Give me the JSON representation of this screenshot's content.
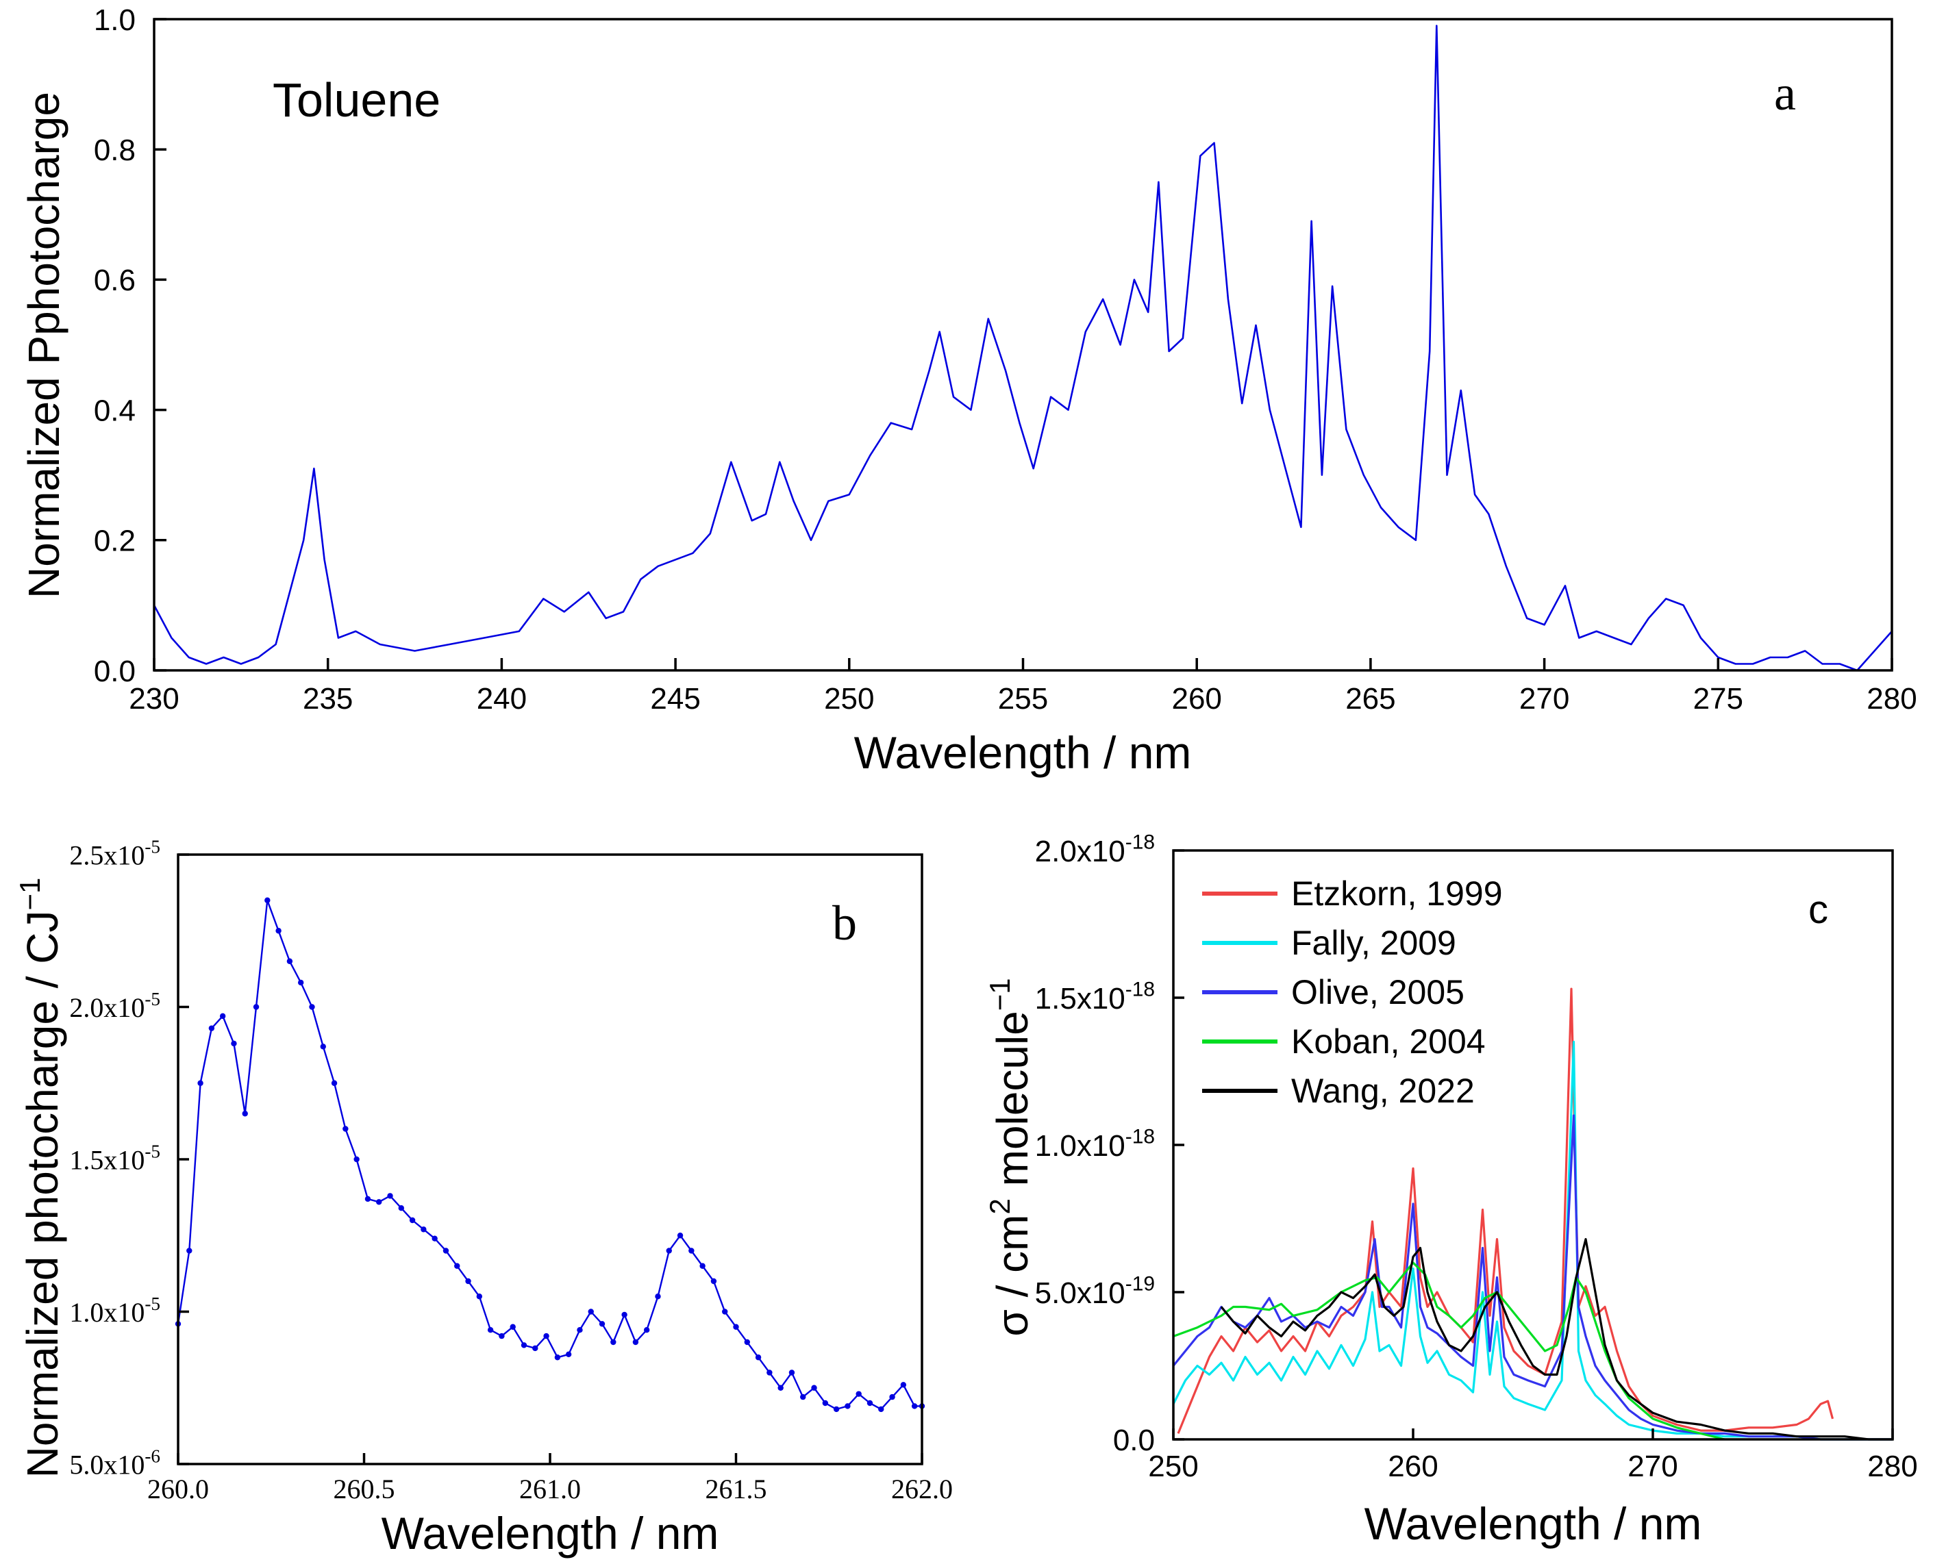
{
  "chart_data": [
    {
      "id": "a",
      "type": "line",
      "panel_label": "a",
      "annotation": "Toluene",
      "xlabel": "Wavelength / nm",
      "ylabel": "Normalized Pphotocharge",
      "xlim": [
        230,
        280
      ],
      "ylim": [
        0,
        1.0
      ],
      "x_ticks": [
        230,
        235,
        240,
        245,
        250,
        255,
        260,
        265,
        270,
        275,
        280
      ],
      "x_tick_labels": [
        "230",
        "235",
        "240",
        "245",
        "250",
        "255",
        "260",
        "265",
        "270",
        "275",
        "280"
      ],
      "y_ticks": [
        0,
        0.2,
        0.4,
        0.6,
        0.8,
        1.0
      ],
      "y_tick_labels": [
        "0.0",
        "0.2",
        "0.4",
        "0.6",
        "0.8",
        "1.0"
      ],
      "series": [
        {
          "name": "Toluene",
          "color": "#0000e0",
          "x": [
            230,
            230.5,
            231,
            231.5,
            232,
            232.5,
            233,
            233.5,
            234,
            234.3,
            234.6,
            234.9,
            235.3,
            235.8,
            236.5,
            237.5,
            238.5,
            239.5,
            240.5,
            241.2,
            241.8,
            242.5,
            243,
            243.5,
            244,
            244.5,
            245,
            245.5,
            246,
            246.6,
            247.2,
            247.6,
            248,
            248.4,
            248.9,
            249.4,
            250,
            250.6,
            251.2,
            251.8,
            252.3,
            252.6,
            253,
            253.5,
            254,
            254.5,
            254.9,
            255.3,
            255.8,
            256.3,
            256.8,
            257.3,
            257.8,
            258.2,
            258.6,
            258.9,
            259.2,
            259.6,
            260.1,
            260.5,
            260.9,
            261.3,
            261.7,
            262.1,
            262.6,
            263,
            263.3,
            263.6,
            263.9,
            264.3,
            264.8,
            265.3,
            265.8,
            266.3,
            266.7,
            266.9,
            267.2,
            267.6,
            268,
            268.4,
            268.9,
            269.5,
            270,
            270.6,
            271,
            271.5,
            272,
            272.5,
            273,
            273.5,
            274,
            274.5,
            275,
            275.5,
            276,
            276.5,
            277,
            277.5,
            278,
            278.5,
            279,
            279.5,
            280
          ],
          "y": [
            0.1,
            0.05,
            0.02,
            0.01,
            0.02,
            0.01,
            0.02,
            0.04,
            0.14,
            0.2,
            0.31,
            0.17,
            0.05,
            0.06,
            0.04,
            0.03,
            0.04,
            0.05,
            0.06,
            0.11,
            0.09,
            0.12,
            0.08,
            0.09,
            0.14,
            0.16,
            0.17,
            0.18,
            0.21,
            0.32,
            0.23,
            0.24,
            0.32,
            0.26,
            0.2,
            0.26,
            0.27,
            0.33,
            0.38,
            0.37,
            0.46,
            0.52,
            0.42,
            0.4,
            0.54,
            0.46,
            0.38,
            0.31,
            0.42,
            0.4,
            0.52,
            0.57,
            0.5,
            0.6,
            0.55,
            0.75,
            0.49,
            0.51,
            0.79,
            0.81,
            0.57,
            0.41,
            0.53,
            0.4,
            0.3,
            0.22,
            0.69,
            0.3,
            0.59,
            0.37,
            0.3,
            0.25,
            0.22,
            0.2,
            0.49,
            0.99,
            0.3,
            0.43,
            0.27,
            0.24,
            0.16,
            0.08,
            0.07,
            0.13,
            0.05,
            0.06,
            0.05,
            0.04,
            0.08,
            0.11,
            0.1,
            0.05,
            0.02,
            0.01,
            0.01,
            0.02,
            0.02,
            0.03,
            0.01,
            0.01,
            0.0,
            0.03,
            0.06
          ]
        }
      ]
    },
    {
      "id": "b",
      "type": "line",
      "panel_label": "b",
      "xlabel": "Wavelength / nm",
      "ylabel": "Normalized photocharge / CJ",
      "ylabel_superscript": "−1",
      "xlim": [
        260.0,
        262.0
      ],
      "ylim": [
        5e-06,
        2.5e-05
      ],
      "x_ticks": [
        260.0,
        260.5,
        261.0,
        261.5,
        262.0
      ],
      "x_tick_labels": [
        "260.0",
        "260.5",
        "261.0",
        "261.5",
        "262.0"
      ],
      "y_ticks": [
        5e-06,
        1e-05,
        1.5e-05,
        2e-05,
        2.5e-05
      ],
      "y_tick_mantissas": [
        "5.0x10",
        "1.0x10",
        "1.5x10",
        "2.0x10",
        "2.5x10"
      ],
      "y_tick_exponents": [
        "-6",
        "-5",
        "-5",
        "-5",
        "-5"
      ],
      "series": [
        {
          "name": "photocharge",
          "color": "#0000e0",
          "markers": true,
          "x": [
            260.0,
            260.03,
            260.06,
            260.09,
            260.12,
            260.15,
            260.18,
            260.21,
            260.24,
            260.27,
            260.3,
            260.33,
            260.36,
            260.39,
            260.42,
            260.45,
            260.48,
            260.51,
            260.54,
            260.57,
            260.6,
            260.63,
            260.66,
            260.69,
            260.72,
            260.75,
            260.78,
            260.81,
            260.84,
            260.87,
            260.9,
            260.93,
            260.96,
            260.99,
            261.02,
            261.05,
            261.08,
            261.11,
            261.14,
            261.17,
            261.2,
            261.23,
            261.26,
            261.29,
            261.32,
            261.35,
            261.38,
            261.41,
            261.44,
            261.47,
            261.5,
            261.53,
            261.56,
            261.59,
            261.62,
            261.65,
            261.68,
            261.71,
            261.74,
            261.77,
            261.8,
            261.83,
            261.86,
            261.89,
            261.92,
            261.95,
            261.98,
            262.0
          ],
          "y": [
            9.6e-06,
            1.2e-05,
            1.75e-05,
            1.93e-05,
            1.97e-05,
            1.88e-05,
            1.65e-05,
            2e-05,
            2.35e-05,
            2.25e-05,
            2.15e-05,
            2.08e-05,
            2e-05,
            1.87e-05,
            1.75e-05,
            1.6e-05,
            1.5e-05,
            1.37e-05,
            1.36e-05,
            1.38e-05,
            1.34e-05,
            1.3e-05,
            1.27e-05,
            1.24e-05,
            1.2e-05,
            1.15e-05,
            1.1e-05,
            1.05e-05,
            9.4e-06,
            9.2e-06,
            9.5e-06,
            8.9e-06,
            8.8e-06,
            9.2e-06,
            8.5e-06,
            8.6e-06,
            9.4e-06,
            1e-05,
            9.6e-06,
            9e-06,
            9.9e-06,
            9e-06,
            9.4e-06,
            1.05e-05,
            1.2e-05,
            1.25e-05,
            1.2e-05,
            1.15e-05,
            1.1e-05,
            1e-05,
            9.5e-06,
            9e-06,
            8.5e-06,
            8e-06,
            7.5e-06,
            8e-06,
            7.2e-06,
            7.5e-06,
            7e-06,
            6.8e-06,
            6.9e-06,
            7.3e-06,
            7e-06,
            6.8e-06,
            7.2e-06,
            7.6e-06,
            6.9e-06,
            6.9e-06
          ]
        }
      ]
    },
    {
      "id": "c",
      "type": "line",
      "panel_label": "c",
      "xlabel": "Wavelength / nm",
      "ylabel_parts": [
        "σ / cm",
        "2",
        " molecule",
        "−1"
      ],
      "xlim": [
        250,
        280
      ],
      "ylim": [
        0,
        2e-18
      ],
      "x_ticks": [
        250,
        260,
        270,
        280
      ],
      "x_tick_labels": [
        "250",
        "260",
        "270",
        "280"
      ],
      "y_ticks": [
        0,
        5e-19,
        1e-18,
        1.5e-18,
        2e-18
      ],
      "y_tick_mantissas": [
        "0.0",
        "5.0x10",
        "1.0x10",
        "1.5x10",
        "2.0x10"
      ],
      "y_tick_exponents": [
        "",
        "-19",
        "-18",
        "-18",
        "-18"
      ],
      "legend_position": "top-left",
      "series": [
        {
          "name": "Etzkorn, 1999",
          "color": "#ee4444",
          "x": [
            250.2,
            250.6,
            251,
            251.5,
            252,
            252.5,
            253,
            253.5,
            254,
            254.5,
            255,
            255.5,
            256,
            256.5,
            257,
            257.5,
            258,
            258.3,
            258.6,
            259,
            259.5,
            260,
            260.3,
            260.6,
            261,
            261.5,
            262,
            262.5,
            262.9,
            263.2,
            263.5,
            263.8,
            264.2,
            264.8,
            265.5,
            266.2,
            266.6,
            266.9,
            267.2,
            267.6,
            268,
            268.5,
            269,
            269.5,
            270,
            271,
            272,
            273,
            274,
            275,
            276,
            276.5,
            277,
            277.3,
            277.5
          ],
          "y": [
            2e-20,
            1e-19,
            1.8e-19,
            2.8e-19,
            3.5e-19,
            3e-19,
            3.8e-19,
            3.3e-19,
            3.7e-19,
            3e-19,
            3.5e-19,
            3e-19,
            4e-19,
            3.5e-19,
            4.2e-19,
            4.5e-19,
            5e-19,
            7.4e-19,
            4.5e-19,
            5e-19,
            4.5e-19,
            9.2e-19,
            5.5e-19,
            4.5e-19,
            5e-19,
            4.2e-19,
            3.8e-19,
            3.3e-19,
            7.8e-19,
            4.2e-19,
            6.8e-19,
            3.8e-19,
            3e-19,
            2.5e-19,
            2.2e-19,
            4e-19,
            1.53e-18,
            4.5e-19,
            5.2e-19,
            4.2e-19,
            4.5e-19,
            3e-19,
            1.8e-19,
            1.2e-19,
            8e-20,
            5e-20,
            3e-20,
            3e-20,
            4e-20,
            4e-20,
            5e-20,
            7e-20,
            1.2e-19,
            1.3e-19,
            7e-20
          ]
        },
        {
          "name": "Fally, 2009",
          "color": "#00e5ee",
          "x": [
            250,
            250.5,
            251,
            251.5,
            252,
            252.5,
            253,
            253.5,
            254,
            254.5,
            255,
            255.5,
            256,
            256.5,
            257,
            257.5,
            258,
            258.3,
            258.6,
            259,
            259.5,
            260,
            260.3,
            260.6,
            261,
            261.5,
            262,
            262.5,
            262.9,
            263.2,
            263.5,
            263.8,
            264.2,
            264.8,
            265.5,
            266.2,
            266.7,
            266.9,
            267.2,
            267.6,
            268,
            268.5,
            269,
            270,
            271,
            272,
            273,
            274,
            275,
            276,
            277,
            278,
            280
          ],
          "y": [
            1.2e-19,
            2e-19,
            2.5e-19,
            2.2e-19,
            2.6e-19,
            2e-19,
            2.8e-19,
            2.2e-19,
            2.6e-19,
            2e-19,
            2.8e-19,
            2.2e-19,
            3e-19,
            2.4e-19,
            3.2e-19,
            2.5e-19,
            3.4e-19,
            5e-19,
            3e-19,
            3.2e-19,
            2.5e-19,
            5.8e-19,
            3.5e-19,
            2.6e-19,
            3e-19,
            2.2e-19,
            2e-19,
            1.6e-19,
            5e-19,
            2.2e-19,
            4e-19,
            1.8e-19,
            1.4e-19,
            1.2e-19,
            1e-19,
            2e-19,
            1.35e-18,
            3e-19,
            2e-19,
            1.5e-19,
            1.2e-19,
            8e-20,
            5e-20,
            3e-20,
            2e-20,
            2e-20,
            1e-20,
            1e-20,
            1e-20,
            1e-20,
            0.0,
            0.0,
            0.0
          ]
        },
        {
          "name": "Olive, 2005",
          "color": "#3333ee",
          "x": [
            250,
            250.5,
            251,
            251.5,
            252,
            252.5,
            253,
            253.5,
            254,
            254.5,
            255,
            255.5,
            256,
            256.5,
            257,
            257.5,
            258,
            258.4,
            258.7,
            259,
            259.5,
            260,
            260.3,
            260.6,
            261,
            261.5,
            262,
            262.5,
            262.9,
            263.2,
            263.5,
            263.8,
            264.2,
            264.8,
            265.5,
            266.2,
            266.7,
            266.9,
            267.2,
            267.6,
            268,
            268.5,
            269,
            269.5,
            270,
            271,
            272,
            273,
            274,
            275,
            276,
            277,
            278,
            279,
            280
          ],
          "y": [
            2.5e-19,
            3e-19,
            3.5e-19,
            3.8e-19,
            4.5e-19,
            4e-19,
            3.8e-19,
            4.2e-19,
            4.8e-19,
            4e-19,
            4.2e-19,
            3.8e-19,
            4e-19,
            3.8e-19,
            4.5e-19,
            4.2e-19,
            5e-19,
            6.8e-19,
            4.5e-19,
            4.5e-19,
            3.8e-19,
            8e-19,
            4.5e-19,
            3.8e-19,
            3.6e-19,
            3.2e-19,
            2.8e-19,
            2.5e-19,
            6.5e-19,
            3e-19,
            5.5e-19,
            2.8e-19,
            2.2e-19,
            2e-19,
            1.8e-19,
            3e-19,
            1.1e-18,
            4.5e-19,
            3.5e-19,
            2.5e-19,
            2e-19,
            1.5e-19,
            1e-19,
            7e-20,
            5e-20,
            3e-20,
            2e-20,
            2e-20,
            1e-20,
            1e-20,
            1e-20,
            0.0,
            0.0,
            0.0,
            0.0
          ]
        },
        {
          "name": "Koban, 2004",
          "color": "#00dd22",
          "x": [
            250,
            251,
            252,
            252.5,
            253,
            254,
            254.5,
            255,
            256,
            257,
            258,
            258.5,
            259,
            259.5,
            260,
            260.5,
            261,
            261.5,
            262,
            262.5,
            263,
            263.5,
            264,
            264.5,
            265,
            265.5,
            266,
            266.5,
            266.8,
            267.2,
            267.6,
            268,
            268.5,
            269,
            270,
            271,
            272,
            273
          ],
          "y": [
            3.5e-19,
            3.8e-19,
            4.2e-19,
            4.5e-19,
            4.5e-19,
            4.4e-19,
            4.6e-19,
            4.2e-19,
            4.4e-19,
            5e-19,
            5.4e-19,
            5.5e-19,
            5e-19,
            5.5e-19,
            6e-19,
            5.6e-19,
            4.5e-19,
            4.2e-19,
            3.8e-19,
            4.2e-19,
            4.8e-19,
            5e-19,
            4.5e-19,
            4e-19,
            3.5e-19,
            3e-19,
            3.2e-19,
            4.5e-19,
            5.5e-19,
            5e-19,
            4e-19,
            3e-19,
            2e-19,
            1.4e-19,
            7e-20,
            4e-20,
            2e-20,
            0.0
          ]
        },
        {
          "name": "Wang, 2022",
          "color": "#000000",
          "x": [
            252,
            252.5,
            253,
            253.5,
            254,
            254.5,
            255,
            255.5,
            256,
            256.5,
            257,
            257.5,
            258,
            258.4,
            258.8,
            259.2,
            259.6,
            260,
            260.3,
            260.6,
            261,
            261.5,
            262,
            262.5,
            263,
            263.5,
            264,
            264.5,
            265,
            265.5,
            266,
            266.4,
            266.8,
            267.2,
            267.6,
            268,
            268.5,
            269,
            269.5,
            270,
            271,
            272,
            273,
            274,
            275,
            276,
            277,
            278,
            279,
            280
          ],
          "y": [
            4.5e-19,
            4e-19,
            3.6e-19,
            4.2e-19,
            3.8e-19,
            3.5e-19,
            4e-19,
            3.7e-19,
            4.2e-19,
            4.5e-19,
            5e-19,
            4.8e-19,
            5.2e-19,
            5.6e-19,
            4.5e-19,
            4.2e-19,
            4.5e-19,
            6.2e-19,
            6.5e-19,
            5e-19,
            4e-19,
            3.2e-19,
            3e-19,
            3.5e-19,
            4.5e-19,
            5e-19,
            4e-19,
            3.2e-19,
            2.5e-19,
            2.2e-19,
            2.2e-19,
            3.5e-19,
            5.5e-19,
            6.8e-19,
            5e-19,
            3.2e-19,
            2e-19,
            1.5e-19,
            1.2e-19,
            9e-20,
            6e-20,
            5e-20,
            3e-20,
            2e-20,
            2e-20,
            1e-20,
            1e-20,
            1e-20,
            0.0,
            0.0
          ]
        }
      ]
    }
  ]
}
